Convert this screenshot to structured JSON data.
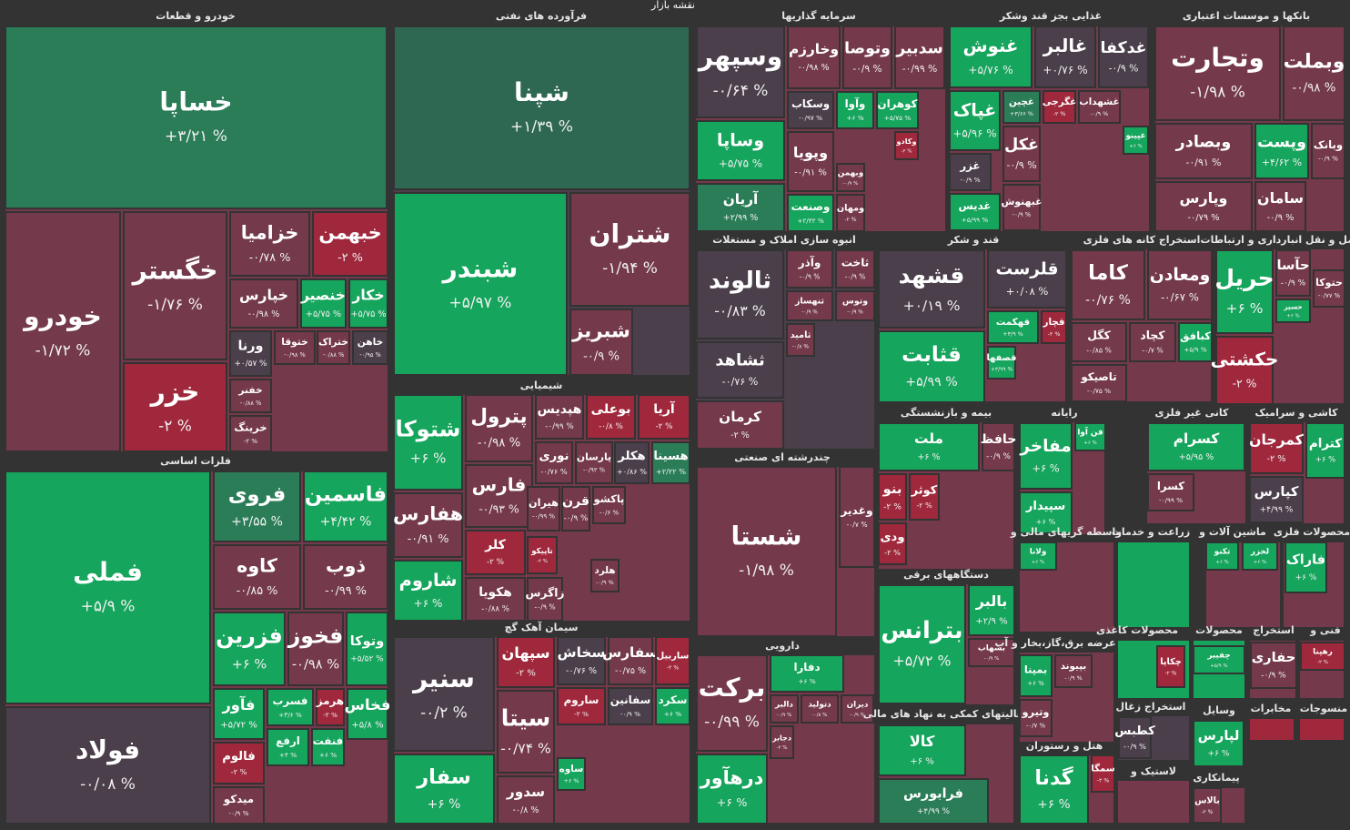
{
  "title": "نقشه بازار",
  "sectors": [
    {
      "name": "خودرو و قطعات",
      "tiles": [
        {
          "name": "خساپا",
          "change": "+۳/۲۱ %"
        },
        {
          "name": "خودرو",
          "change": "-۱/۷۲ %"
        },
        {
          "name": "خگستر",
          "change": "-۱/۷۶ %"
        },
        {
          "name": "خزر",
          "change": "-۲ %"
        },
        {
          "name": "خزامیا",
          "change": "-۰/۷۸ %"
        },
        {
          "name": "خبهمن",
          "change": "-۲ %"
        },
        {
          "name": "خپارس",
          "change": "-۰/۹۸ %"
        },
        {
          "name": "خنصیر",
          "change": "+۵/۷۵ %"
        },
        {
          "name": "خکار",
          "change": "+۵/۷۵ %"
        },
        {
          "name": "ورنا",
          "change": "+۰/۵۷ %"
        },
        {
          "name": "ختوقا",
          "change": "-۰/۹۸ %"
        },
        {
          "name": "ختراک",
          "change": "-۰/۸۸ %"
        },
        {
          "name": "خاهن",
          "change": "-۰/۹۵ %"
        },
        {
          "name": "خفنر",
          "change": "-۰/۸۸ %"
        },
        {
          "name": "خرینگ",
          "change": "-۲ %"
        }
      ]
    },
    {
      "name": "فلزات اساسی",
      "tiles": [
        {
          "name": "فملی",
          "change": "+۵/۹ %"
        },
        {
          "name": "فولاد",
          "change": "-۰/۰۸ %"
        },
        {
          "name": "فروی",
          "change": "+۳/۵۵ %"
        },
        {
          "name": "فاسمین",
          "change": "+۴/۴۲ %"
        },
        {
          "name": "کاوه",
          "change": "-۰/۸۵ %"
        },
        {
          "name": "ذوب",
          "change": "-۰/۹۹ %"
        },
        {
          "name": "فزرین",
          "change": "+۶ %"
        },
        {
          "name": "فخوز",
          "change": "-۰/۹۸ %"
        },
        {
          "name": "وتوکا",
          "change": "+۵/۵۲ %"
        },
        {
          "name": "فآور",
          "change": "+۵/۷۲ %"
        },
        {
          "name": "فسرب",
          "change": "+۳/۶ %"
        },
        {
          "name": "هرمز",
          "change": "-۲ %"
        },
        {
          "name": "فخاس",
          "change": "+۵/۸ %"
        },
        {
          "name": "فالوم",
          "change": "-۲ %"
        },
        {
          "name": "ارفع",
          "change": "+۴ %"
        },
        {
          "name": "فنفت",
          "change": "+۶ %"
        },
        {
          "name": "میدکو",
          "change": "-۰/۹ %"
        }
      ]
    },
    {
      "name": "فرآورده های نفتی",
      "tiles": [
        {
          "name": "شپنا",
          "change": "+۱/۳۹ %"
        },
        {
          "name": "شبندر",
          "change": "+۵/۹۷ %"
        },
        {
          "name": "شتران",
          "change": "-۱/۹۴ %"
        },
        {
          "name": "شبریز",
          "change": "-۰/۹ %"
        }
      ]
    },
    {
      "name": "شیمیایی",
      "tiles": [
        {
          "name": "شتوکا",
          "change": "+۶ %"
        },
        {
          "name": "پترول",
          "change": "-۰/۹۸ %"
        },
        {
          "name": "هپدیس",
          "change": "-۰/۹۹ %"
        },
        {
          "name": "بوعلی",
          "change": "-۰/۸ %"
        },
        {
          "name": "آریا",
          "change": "-۲ %"
        },
        {
          "name": "نوری",
          "change": "-۰/۷۶ %"
        },
        {
          "name": "پارسان",
          "change": "-۰/۹۳ %"
        },
        {
          "name": "هکلر",
          "change": "+۰/۸۶ %"
        },
        {
          "name": "هسینا",
          "change": "+۲/۲۲ %"
        },
        {
          "name": "هفارس",
          "change": "-۰/۹۱ %"
        },
        {
          "name": "فارس",
          "change": "-۰/۹۳ %"
        },
        {
          "name": "شاروم",
          "change": "+۶ %"
        },
        {
          "name": "کلر",
          "change": "-۲ %"
        },
        {
          "name": "هکویا",
          "change": "-۰/۸۸ %"
        },
        {
          "name": "هیران",
          "change": "-۰/۹۹ %"
        },
        {
          "name": "قرن",
          "change": "-۰/۹ %"
        },
        {
          "name": "پاکشو",
          "change": "-۰/۶ %"
        },
        {
          "name": "تاپیکو",
          "change": "-۲ %"
        },
        {
          "name": "زاگرس",
          "change": "-۰/۹ %"
        },
        {
          "name": "هلرد",
          "change": "-۰/۹ %"
        }
      ]
    },
    {
      "name": "سیمان آهک گچ",
      "tiles": [
        {
          "name": "سنیر",
          "change": "-۰/۲ %"
        },
        {
          "name": "سفار",
          "change": "+۶ %"
        },
        {
          "name": "سپهان",
          "change": "-۲ %"
        },
        {
          "name": "سخاش",
          "change": "-۰/۷۶ %"
        },
        {
          "name": "سفارس",
          "change": "-۰/۷۵ %"
        },
        {
          "name": "ساربیل",
          "change": "-۲ %"
        },
        {
          "name": "ساروم",
          "change": "-۲ %"
        },
        {
          "name": "سفانین",
          "change": "-۰/۹ %"
        },
        {
          "name": "سکرد",
          "change": "+۶ %"
        },
        {
          "name": "سیتا",
          "change": "-۰/۷۴ %"
        },
        {
          "name": "سدور",
          "change": "-۰/۸ %"
        },
        {
          "name": "ساوه",
          "change": "+۶ %"
        }
      ]
    },
    {
      "name": "سرمایه گذاریها",
      "tiles": [
        {
          "name": "وسپهر",
          "change": "-۰/۶۴ %"
        },
        {
          "name": "وساپا",
          "change": "+۵/۷۵ %"
        },
        {
          "name": "آریان",
          "change": "+۲/۹۹ %"
        },
        {
          "name": "وخارزم",
          "change": "-۰/۹۸ %"
        },
        {
          "name": "وتوصا",
          "change": "-۰/۹ %"
        },
        {
          "name": "سدبیر",
          "change": "-۰/۹۹ %"
        },
        {
          "name": "وسکاب",
          "change": "-۰/۹۷ %"
        },
        {
          "name": "وآوا",
          "change": "+۶ %"
        },
        {
          "name": "کوهران",
          "change": "+۵/۷۵ %"
        },
        {
          "name": "وپویا",
          "change": "-۰/۹۱ %"
        },
        {
          "name": "وکادو",
          "change": "-۲ %"
        },
        {
          "name": "وبهمن",
          "change": "-۰/۹ %"
        },
        {
          "name": "وصنعت",
          "change": "+۲/۴۲ %"
        },
        {
          "name": "ومهان",
          "change": "-۲ %"
        }
      ]
    },
    {
      "name": "غذایی بجز قند وشکر",
      "tiles": [
        {
          "name": "غنوش",
          "change": "+۵/۷۶ %"
        },
        {
          "name": "غالبر",
          "change": "+۰/۷۶ %"
        },
        {
          "name": "غدکفا",
          "change": "-۰/۹ %"
        },
        {
          "name": "غپاک",
          "change": "+۵/۹۶ %"
        },
        {
          "name": "غچین",
          "change": "+۳/۶۶ %"
        },
        {
          "name": "غگرجی",
          "change": "-۲ %"
        },
        {
          "name": "غشهداب",
          "change": "-۰/۹ %"
        },
        {
          "name": "غزر",
          "change": "-۰/۹ %"
        },
        {
          "name": "غکل",
          "change": "-۰/۹ %"
        },
        {
          "name": "غدیس",
          "change": "+۵/۹۹ %"
        },
        {
          "name": "غبهنوش",
          "change": "-۰/۹ %"
        },
        {
          "name": "غپینو",
          "change": "+۶ %"
        }
      ]
    },
    {
      "name": "بانکها و موسسات اعتباری",
      "tiles": [
        {
          "name": "وتجارت",
          "change": "-۱/۹۸ %"
        },
        {
          "name": "وبملت",
          "change": "-۰/۹۸ %"
        },
        {
          "name": "وبصادر",
          "change": "-۰/۹۱ %"
        },
        {
          "name": "وپست",
          "change": "+۴/۶۲ %"
        },
        {
          "name": "وبانک",
          "change": "-۰/۹ %"
        },
        {
          "name": "وپارس",
          "change": "-۰/۷۹ %"
        },
        {
          "name": "سامان",
          "change": "-۰/۹ %"
        }
      ]
    },
    {
      "name": "انبوه سازی املاک و مستغلات",
      "tiles": [
        {
          "name": "ثالوند",
          "change": "-۰/۸۳ %"
        },
        {
          "name": "ثشاهد",
          "change": "-۰/۷۶ %"
        },
        {
          "name": "کرمان",
          "change": "-۲ %"
        },
        {
          "name": "وآذر",
          "change": "-۰/۹ %"
        },
        {
          "name": "ثاخت",
          "change": "-۰/۹ %"
        },
        {
          "name": "ثنهساز",
          "change": "-۰/۹ %"
        },
        {
          "name": "وتوس",
          "change": "-۰/۹ %"
        },
        {
          "name": "ثامید",
          "change": "-۰/۸ %"
        }
      ]
    },
    {
      "name": "قند و شکر",
      "tiles": [
        {
          "name": "قشهد",
          "change": "+۰/۱۹ %"
        },
        {
          "name": "قثابت",
          "change": "+۵/۹۹ %"
        },
        {
          "name": "قلرست",
          "change": "+۰/۰۸ %"
        },
        {
          "name": "قهکمت",
          "change": "+۳/۹ %"
        },
        {
          "name": "قچار",
          "change": "-۲ %"
        },
        {
          "name": "قصفها",
          "change": "+۳/۹۹ %"
        }
      ]
    },
    {
      "name": "استخراج کانه های فلزی",
      "tiles": [
        {
          "name": "کاما",
          "change": "-۰/۷۶ %"
        },
        {
          "name": "ومعادن",
          "change": "-۰/۶۷ %"
        },
        {
          "name": "کگل",
          "change": "-۰/۸۵ %"
        },
        {
          "name": "کچاد",
          "change": "-۰/۷ %"
        },
        {
          "name": "کبافق",
          "change": "+۵/۹ %"
        },
        {
          "name": "تاصیکو",
          "change": "-۰/۷۵ %"
        }
      ]
    },
    {
      "name": "حمل و نقل انبارداری و ارتباطات",
      "tiles": [
        {
          "name": "حریل",
          "change": "+۶ %"
        },
        {
          "name": "حآسا",
          "change": "-۰/۹ %"
        },
        {
          "name": "حتوکا",
          "change": "-۰/۷۷ %"
        },
        {
          "name": "حسیر",
          "change": "+۶ %"
        },
        {
          "name": "حکشتی",
          "change": "-۲ %"
        }
      ]
    },
    {
      "name": "بیمه و بازنشستگی",
      "tiles": [
        {
          "name": "ملت",
          "change": "+۶ %"
        },
        {
          "name": "حافظ",
          "change": "-۰/۹ %"
        },
        {
          "name": "بنو",
          "change": "-۲ %"
        },
        {
          "name": "کوثر",
          "change": "-۲ %"
        },
        {
          "name": "ودی",
          "change": "-۲ %"
        }
      ]
    },
    {
      "name": "رایانه",
      "tiles": [
        {
          "name": "مفاخر",
          "change": "+۶ %"
        },
        {
          "name": "فن آوا",
          "change": "+۶ %"
        },
        {
          "name": "سپیدار",
          "change": "+۶ %"
        }
      ]
    },
    {
      "name": "کانی غیر فلزی",
      "tiles": [
        {
          "name": "کسرام",
          "change": "+۵/۹۵ %"
        },
        {
          "name": "کسرا",
          "change": "-۰/۹۹ %"
        }
      ]
    },
    {
      "name": "کاشی و سرامیک",
      "tiles": [
        {
          "name": "کمرجان",
          "change": "-۲ %"
        },
        {
          "name": "کترام",
          "change": "+۶ %"
        },
        {
          "name": "کپارس",
          "change": "+۴/۹۹ %"
        }
      ]
    },
    {
      "name": "چندرشته ای صنعتی",
      "tiles": [
        {
          "name": "شستا",
          "change": "-۱/۹۸ %"
        },
        {
          "name": "وغدیر",
          "change": "-۰/۷ %"
        }
      ]
    },
    {
      "name": "دارویی",
      "tiles": [
        {
          "name": "برکت",
          "change": "-۰/۹۹ %"
        },
        {
          "name": "درهآور",
          "change": "+۶ %"
        },
        {
          "name": "دفارا",
          "change": "+۶ %"
        },
        {
          "name": "دالبر",
          "change": "-۰/۹ %"
        },
        {
          "name": "دتولید",
          "change": "-۰/۸ %"
        },
        {
          "name": "دیران",
          "change": "-۰/۹ %"
        },
        {
          "name": "دجابر",
          "change": "-۲ %"
        }
      ]
    },
    {
      "name": "دستگاههای برقی",
      "tiles": [
        {
          "name": "بترانس",
          "change": "+۵/۷۲ %"
        },
        {
          "name": "بالبر",
          "change": "+۲/۹ %"
        },
        {
          "name": "بشهاب",
          "change": "-۰/۹ %"
        }
      ]
    },
    {
      "name": "فعالیتهای کمکی به نهاد های مالی",
      "tiles": [
        {
          "name": "کالا",
          "change": "+۶ %"
        },
        {
          "name": "فرابورس",
          "change": "+۴/۹۹ %"
        }
      ]
    },
    {
      "name": "واسطه گریهای مالی و",
      "tiles": [
        {
          "name": "ولانا",
          "change": "+۶ %"
        }
      ]
    },
    {
      "name": "عرضه برق،گاز،بخار و آب",
      "tiles": [
        {
          "name": "بمپنا",
          "change": "+۶ %"
        },
        {
          "name": "بپیوند",
          "change": "-۰/۹ %"
        },
        {
          "name": "وتیرو",
          "change": "-۰/۷ %"
        }
      ]
    },
    {
      "name": "هتل و رستوران",
      "tiles": [
        {
          "name": "گدنا",
          "change": "+۶ %"
        },
        {
          "name": "سمگا",
          "change": "-۲ %"
        }
      ]
    },
    {
      "name": "زراعت و خدمات"
    },
    {
      "name": "ماشین آلات و",
      "tiles": [
        {
          "name": "تکنو",
          "change": "+۶ %"
        },
        {
          "name": "لخزر",
          "change": "+۶ %"
        }
      ]
    },
    {
      "name": "محصولات فلزی",
      "tiles": [
        {
          "name": "فاراک",
          "change": "+۶ %"
        }
      ]
    },
    {
      "name": "محصولات کاغذی",
      "tiles": [
        {
          "name": "چکاپا",
          "change": "-۲ %"
        }
      ]
    },
    {
      "name": "محصولات",
      "tiles": [
        {
          "name": "چفیبر",
          "change": "+۵/۹ %"
        }
      ]
    },
    {
      "name": "استخراج",
      "tiles": [
        {
          "name": "حفاری",
          "change": "-۰/۹ %"
        }
      ]
    },
    {
      "name": "فنی و",
      "tiles": [
        {
          "name": "رهپنا",
          "change": "-۲ %"
        }
      ]
    },
    {
      "name": "استخراج زغال",
      "tiles": [
        {
          "name": "کطبس",
          "change": "-۰/۹ %"
        }
      ]
    },
    {
      "name": "وسایل",
      "tiles": [
        {
          "name": "لپارس",
          "change": "+۶ %"
        }
      ]
    },
    {
      "name": "مخابرات"
    },
    {
      "name": "منسوجات"
    },
    {
      "name": "لاستیک و"
    },
    {
      "name": "پیمانکاری",
      "tiles": [
        {
          "name": "بالاس",
          "change": "-۲ %"
        }
      ]
    }
  ]
}
